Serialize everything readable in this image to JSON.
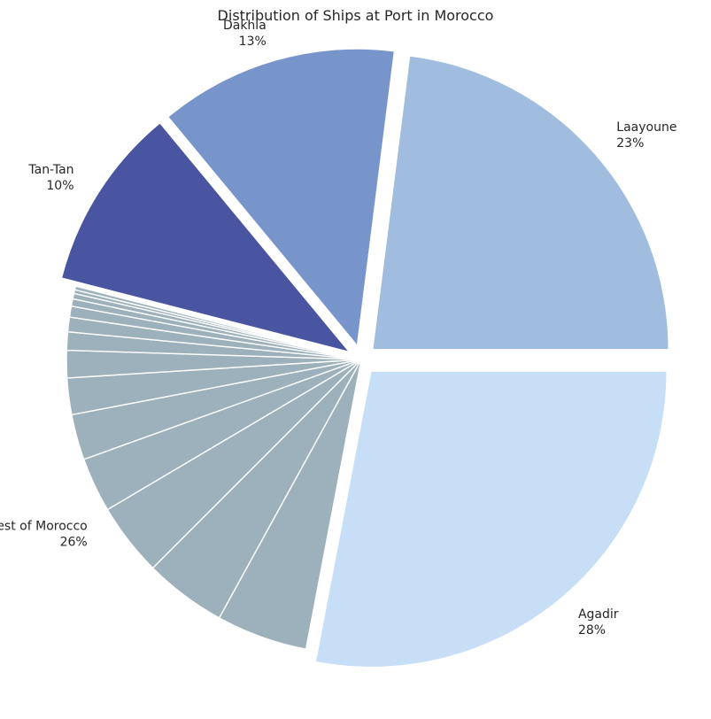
{
  "chart_data": {
    "type": "pie",
    "title": "Distribution of Ships at Port in Morocco",
    "slices": [
      {
        "name": "Agadir",
        "value": 28,
        "label": "28%",
        "color": "#c6dff7",
        "explode": true
      },
      {
        "name": "Rest of Morocco",
        "value": 26,
        "label": "26%",
        "color": "#9db1bc",
        "explode": false,
        "sub_slices": [
          5,
          4.5,
          4,
          3,
          2.5,
          2,
          1.5,
          1,
          0.8,
          0.6,
          0.4,
          0.3,
          0.2,
          0.2
        ]
      },
      {
        "name": "Tan-Tan",
        "value": 10,
        "label": "10%",
        "color": "#4a55a2",
        "explode": true
      },
      {
        "name": "Dakhla",
        "value": 13,
        "label": "13%",
        "color": "#7895cb",
        "explode": true
      },
      {
        "name": "Laayoune",
        "value": 23,
        "label": "23%",
        "color": "#a0bde0",
        "explode": true
      }
    ]
  }
}
